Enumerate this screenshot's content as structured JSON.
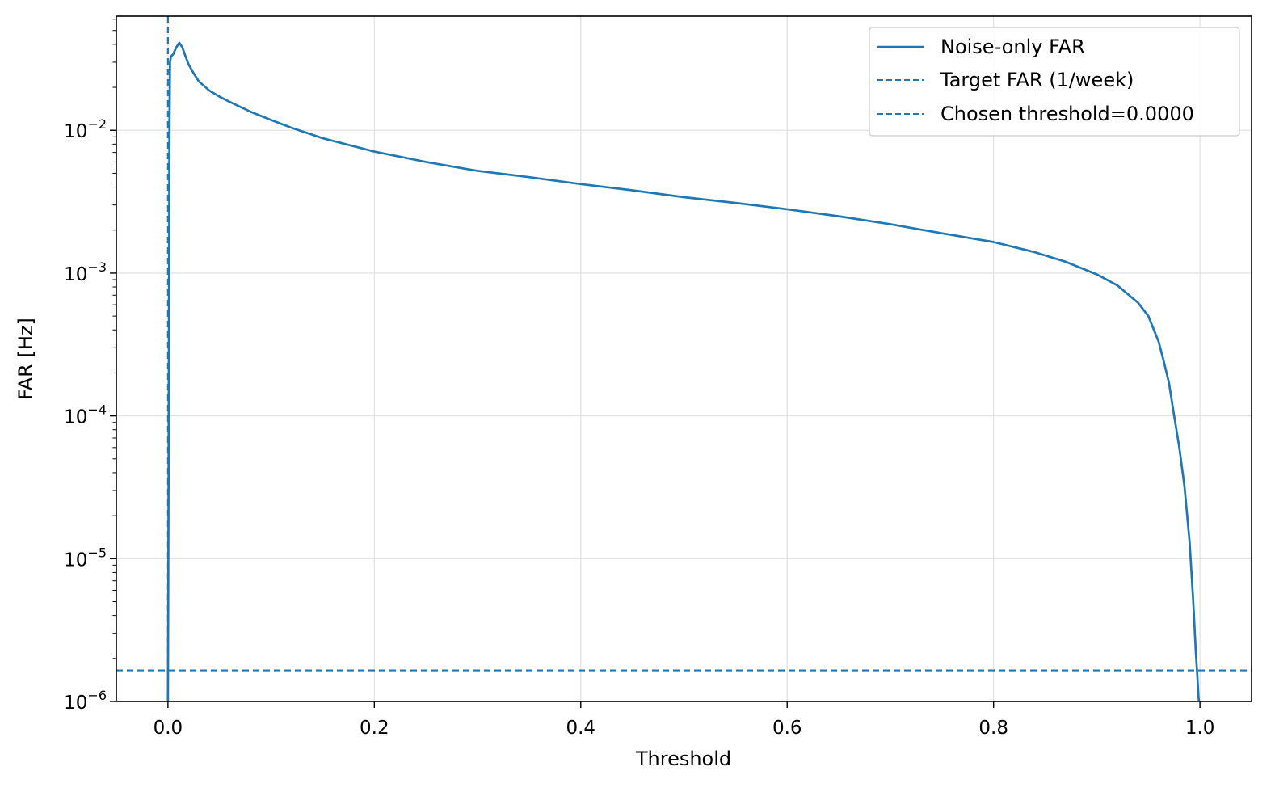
{
  "chart_data": {
    "type": "line",
    "title": "",
    "xlabel": "Threshold",
    "ylabel": "FAR [Hz]",
    "xlim": [
      -0.05,
      1.05
    ],
    "ylim": [
      1e-06,
      0.063
    ],
    "yscale": "log",
    "grid": true,
    "legend_position": "top-right",
    "x_ticks": [
      {
        "value": 0.0,
        "label": "0.0"
      },
      {
        "value": 0.2,
        "label": "0.2"
      },
      {
        "value": 0.4,
        "label": "0.4"
      },
      {
        "value": 0.6,
        "label": "0.6"
      },
      {
        "value": 0.8,
        "label": "0.8"
      },
      {
        "value": 1.0,
        "label": "1.0"
      }
    ],
    "y_ticks": [
      {
        "value": 1e-06,
        "base": "10",
        "exp": "−6"
      },
      {
        "value": 1e-05,
        "base": "10",
        "exp": "−5"
      },
      {
        "value": 0.0001,
        "base": "10",
        "exp": "−4"
      },
      {
        "value": 0.001,
        "base": "10",
        "exp": "−3"
      },
      {
        "value": 0.01,
        "base": "10",
        "exp": "−2"
      }
    ],
    "series": [
      {
        "name": "Noise-only FAR",
        "style": "solid",
        "color": "#1f77b4",
        "x": [
          0.0,
          0.0008,
          0.0015,
          0.002,
          0.003,
          0.005,
          0.008,
          0.011,
          0.014,
          0.017,
          0.02,
          0.025,
          0.03,
          0.04,
          0.05,
          0.06,
          0.08,
          0.1,
          0.12,
          0.15,
          0.2,
          0.25,
          0.3,
          0.35,
          0.4,
          0.45,
          0.5,
          0.55,
          0.6,
          0.65,
          0.7,
          0.75,
          0.8,
          0.84,
          0.87,
          0.9,
          0.92,
          0.94,
          0.95,
          0.96,
          0.965,
          0.97,
          0.975,
          0.98,
          0.985,
          0.99,
          0.9935,
          0.996,
          0.9975,
          0.9985,
          0.999
        ],
        "y": [
          1e-06,
          0.0001,
          0.01,
          0.03,
          0.033,
          0.034,
          0.038,
          0.041,
          0.038,
          0.033,
          0.029,
          0.025,
          0.022,
          0.019,
          0.0172,
          0.0158,
          0.0135,
          0.0118,
          0.0104,
          0.0088,
          0.0071,
          0.006,
          0.0052,
          0.0047,
          0.0042,
          0.0038,
          0.0034,
          0.0031,
          0.0028,
          0.0025,
          0.0022,
          0.0019,
          0.00165,
          0.0014,
          0.0012,
          0.00098,
          0.00082,
          0.00062,
          0.0005,
          0.00033,
          0.00024,
          0.00017,
          0.0001,
          6e-05,
          3.2e-05,
          1.3e-05,
          5e-06,
          2.2e-06,
          1.5e-06,
          1.1e-06,
          1e-06
        ]
      },
      {
        "name": "Target FAR (1/week)",
        "style": "dashed",
        "color": "#1f77b4",
        "orientation": "horizontal",
        "y_value": 1.65e-06
      },
      {
        "name": "Chosen threshold=0.0000",
        "style": "dashed",
        "color": "#1f77b4",
        "orientation": "vertical",
        "x_value": 0.0
      }
    ]
  }
}
